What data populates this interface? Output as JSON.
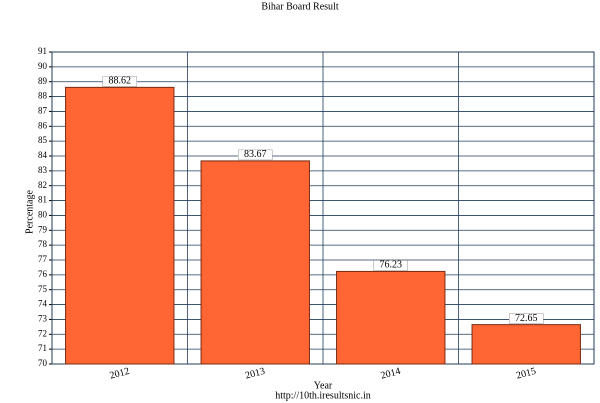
{
  "chart_data": {
    "type": "bar",
    "title": "Bihar Board Result",
    "categories": [
      "2012",
      "2013",
      "2014",
      "2015"
    ],
    "values": [
      88.62,
      83.67,
      76.23,
      72.65
    ],
    "color": "#ff6633",
    "x_label": "Year",
    "y_label": "Percentage",
    "source": "http://10th.iresultsnic.in",
    "ylim": [
      70,
      91
    ],
    "yticks": [
      70,
      71,
      72,
      73,
      74,
      75,
      76,
      77,
      78,
      79,
      80,
      81,
      82,
      83,
      84,
      85,
      86,
      87,
      88,
      89,
      90,
      91
    ],
    "grid": true
  }
}
